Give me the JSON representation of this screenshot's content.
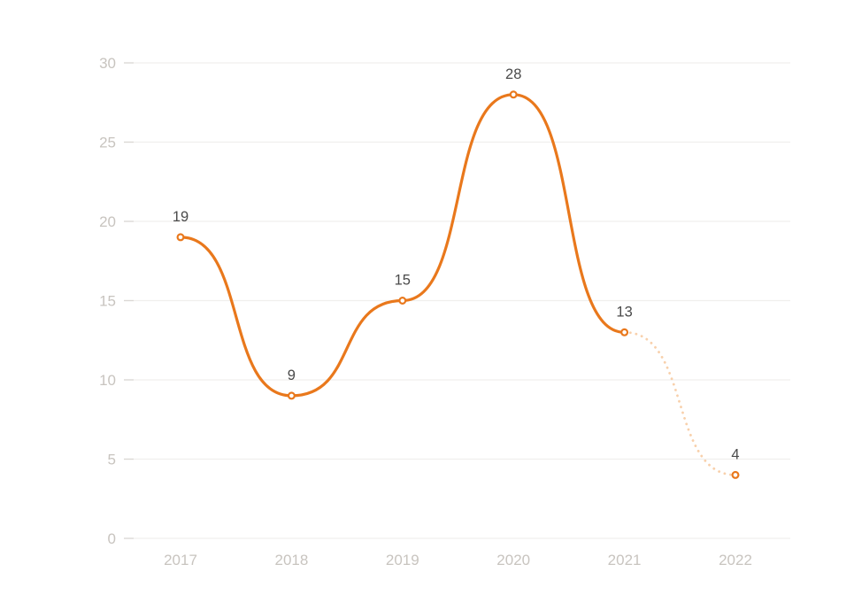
{
  "chart_data": {
    "type": "line",
    "title": "",
    "xlabel": "",
    "ylabel": "",
    "categories": [
      "2017",
      "2018",
      "2019",
      "2020",
      "2021",
      "2022"
    ],
    "series": [
      {
        "name": "main",
        "values": [
          19,
          9,
          15,
          28,
          13,
          4
        ],
        "data_labels": [
          "19",
          "9",
          "15",
          "28",
          "13",
          "4"
        ],
        "dashed_from_index": 4
      }
    ],
    "y_ticks": [
      0,
      5,
      10,
      15,
      20,
      25,
      30
    ],
    "ylim": [
      0,
      30
    ],
    "grid": "horizontal",
    "legend": "none",
    "smooth": true,
    "marker": "open-circle",
    "colors": {
      "line": "#e9781c",
      "line_forecast": "#f8d0ab",
      "marker_fill": "#ffffff",
      "grid_line": "#f0efed",
      "axis_tick": "#dbd8d4",
      "axis_label": "#c8c4bf",
      "data_label": "#4a4a4a",
      "background": "#ffffff"
    }
  }
}
